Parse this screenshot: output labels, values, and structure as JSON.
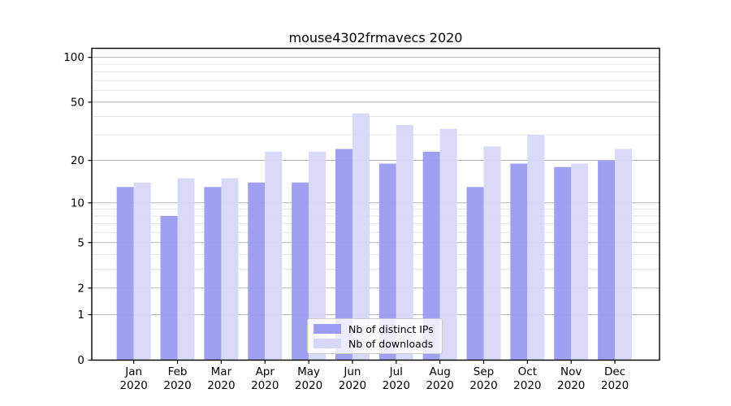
{
  "chart_data": {
    "type": "bar",
    "title": "mouse4302frmavecs 2020",
    "months": [
      "Jan",
      "Feb",
      "Mar",
      "Apr",
      "May",
      "Jun",
      "Jul",
      "Aug",
      "Sep",
      "Oct",
      "Nov",
      "Dec"
    ],
    "year": "2020",
    "categories": [
      "Jan 2020",
      "Feb 2020",
      "Mar 2020",
      "Apr 2020",
      "May 2020",
      "Jun 2020",
      "Jul 2020",
      "Aug 2020",
      "Sep 2020",
      "Oct 2020",
      "Nov 2020",
      "Dec 2020"
    ],
    "series": [
      {
        "name": "Nb of distinct IPs",
        "color": "#9b9bf0",
        "values": [
          13,
          8,
          13,
          14,
          14,
          24,
          19,
          23,
          13,
          19,
          18,
          20
        ]
      },
      {
        "name": "Nb of downloads",
        "color": "#d7d7f8",
        "values": [
          14,
          15,
          15,
          23,
          23,
          42,
          35,
          33,
          25,
          30,
          19,
          24
        ]
      }
    ],
    "xlabel": "",
    "ylabel": "",
    "yscale": "log1p",
    "y_ticks": [
      0,
      1,
      2,
      5,
      10,
      20,
      50,
      100
    ],
    "y_minor_gridlines": [
      3,
      4,
      6,
      7,
      8,
      9,
      30,
      40,
      60,
      70,
      80,
      90
    ],
    "ylim": [
      0,
      115
    ],
    "grid": true,
    "legend_position": "lower center",
    "colors": {
      "major_gridline": "#b5b5b5",
      "minor_gridline": "#e7e7e7",
      "spine": "#000000",
      "text": "#000000",
      "background": "#ffffff"
    }
  }
}
